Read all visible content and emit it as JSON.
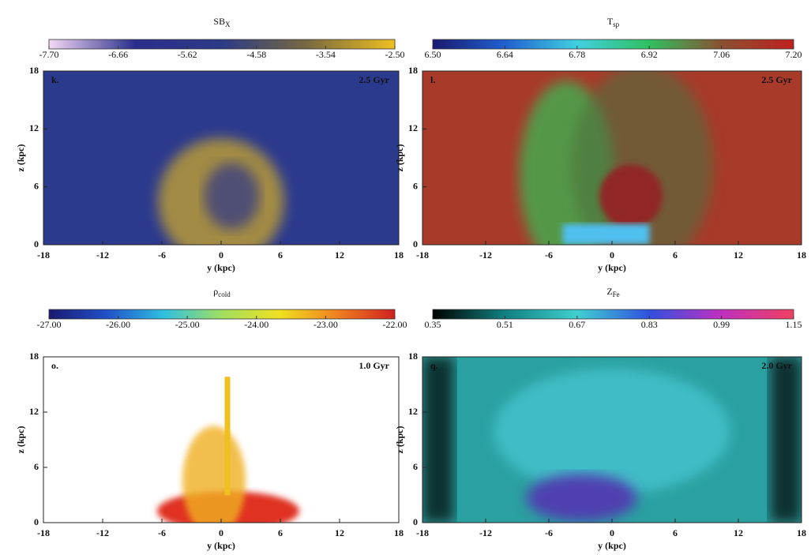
{
  "chart_data": [
    {
      "type": "image",
      "title": "SB",
      "title_subscript": "X",
      "panel_label": "k.",
      "annotation": "2.5 Gyr",
      "colormap": [
        "#f4d8f4",
        "#2a2f8c",
        "#2c3a86",
        "#7a6a40",
        "#f0c020"
      ],
      "clim": [
        -7.7,
        -2.5
      ],
      "cticks": [
        {
          "value": -7.7,
          "label": "-7.70"
        },
        {
          "value": -6.66,
          "label": "-6.66"
        },
        {
          "value": -5.62,
          "label": "-5.62"
        },
        {
          "value": -4.58,
          "label": "-4.58"
        },
        {
          "value": -3.54,
          "label": "-3.54"
        },
        {
          "value": -2.5,
          "label": "-2.50"
        }
      ],
      "xlabel": "y (kpc)",
      "ylabel": "z (kpc)",
      "xlim": [
        -18,
        18
      ],
      "ylim": [
        0,
        18
      ],
      "xticks": [
        -18,
        -12,
        -6,
        0,
        6,
        12,
        18
      ],
      "yticks": [
        0,
        6,
        12,
        18
      ]
    },
    {
      "type": "image",
      "title": "T",
      "title_subscript": "sp",
      "panel_label": "l.",
      "annotation": "2.5 Gyr",
      "colormap": [
        "#1a1a6e",
        "#2060d0",
        "#40d0e0",
        "#30c060",
        "#8a5030",
        "#c02020"
      ],
      "clim": [
        6.5,
        7.2
      ],
      "cticks": [
        {
          "value": 6.5,
          "label": "6.50"
        },
        {
          "value": 6.64,
          "label": "6.64"
        },
        {
          "value": 6.78,
          "label": "6.78"
        },
        {
          "value": 6.92,
          "label": "6.92"
        },
        {
          "value": 7.06,
          "label": "7.06"
        },
        {
          "value": 7.2,
          "label": "7.20"
        }
      ],
      "xlabel": "y (kpc)",
      "ylabel": "z (kpc)",
      "xlim": [
        -18,
        18
      ],
      "ylim": [
        0,
        18
      ],
      "xticks": [
        -18,
        -12,
        -6,
        0,
        6,
        12,
        18
      ],
      "yticks": [
        0,
        6,
        12,
        18
      ]
    },
    {
      "type": "image",
      "title": "ρ",
      "title_subscript": "cold",
      "panel_label": "o.",
      "annotation": "1.0 Gyr",
      "colormap": [
        "#1a1a70",
        "#2050c8",
        "#30c0e0",
        "#a0e060",
        "#f0e020",
        "#f08020",
        "#d02020"
      ],
      "clim": [
        -27,
        -22
      ],
      "cticks": [
        {
          "value": -27,
          "label": "-27.00"
        },
        {
          "value": -26,
          "label": "-26.00"
        },
        {
          "value": -25,
          "label": "-25.00"
        },
        {
          "value": -24,
          "label": "-24.00"
        },
        {
          "value": -23,
          "label": "-23.00"
        },
        {
          "value": -22,
          "label": "-22.00"
        }
      ],
      "xlabel": "y (kpc)",
      "ylabel": "z (kpc)",
      "xlim": [
        -18,
        18
      ],
      "ylim": [
        0,
        18
      ],
      "xticks": [
        -18,
        -12,
        -6,
        0,
        6,
        12,
        18
      ],
      "yticks": [
        0,
        6,
        12,
        18
      ]
    },
    {
      "type": "image",
      "title": "Z",
      "title_subscript": "Fe",
      "panel_label": "q.",
      "annotation": "2.0 Gyr",
      "colormap": [
        "#000000",
        "#108080",
        "#40d0d0",
        "#3050e0",
        "#c030c0",
        "#f04060"
      ],
      "clim": [
        0.35,
        1.15
      ],
      "cticks": [
        0.35,
        0.51,
        0.67,
        0.83,
        0.99,
        1.15
      ],
      "xlabel": "y (kpc)",
      "ylabel": "z (kpc)",
      "xlim": [
        -18,
        18
      ],
      "ylim": [
        0,
        18
      ],
      "xticks": [
        -18,
        -12,
        -6,
        0,
        6,
        12,
        18
      ],
      "yticks": [
        0,
        6,
        12,
        18
      ]
    }
  ]
}
